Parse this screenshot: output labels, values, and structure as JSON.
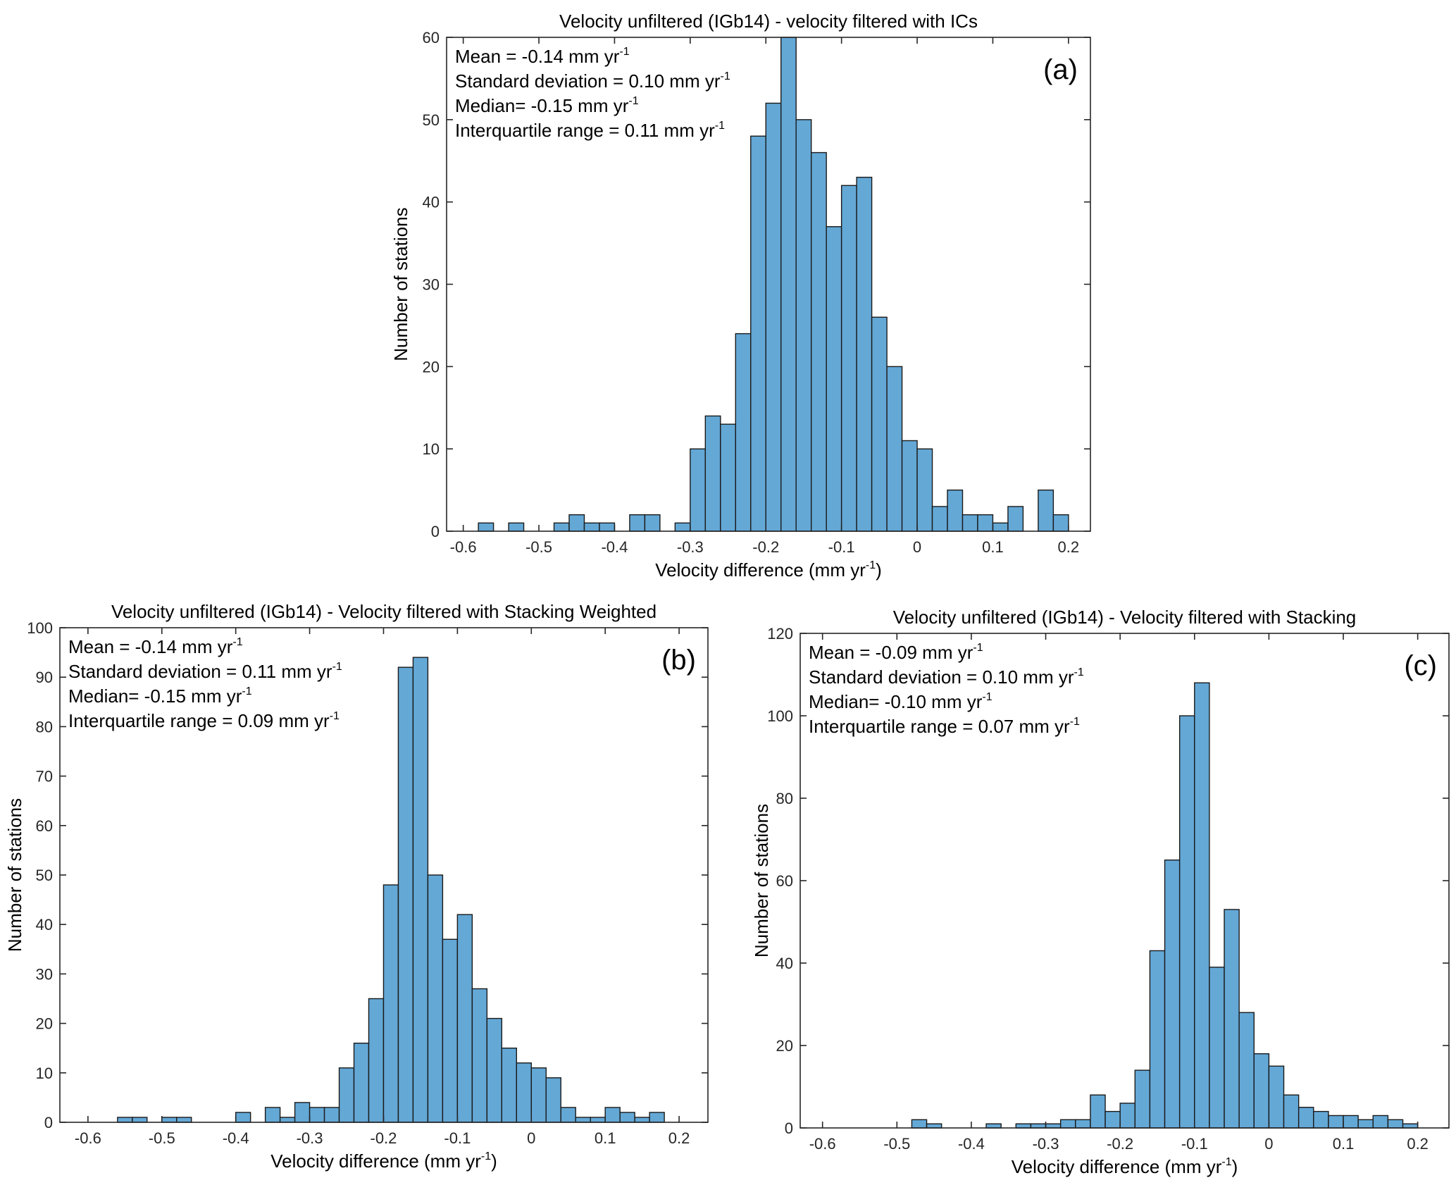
{
  "colors": {
    "bar_fill": "#64a8d6",
    "bar_edge": "#1a1a1a",
    "axis": "#262626"
  },
  "chart_data": [
    {
      "type": "bar",
      "panel": "(a)",
      "title": "Velocity unfiltered (IGb14) - velocity filtered with ICs",
      "xlabel": "Velocity difference (mm yr",
      "xlabel_sup": "-1",
      "xlabel_end": ")",
      "ylabel": "Number of stations",
      "xlim": [
        -0.622,
        0.229
      ],
      "ylim": [
        0,
        60
      ],
      "xticks": [
        -0.6,
        -0.5,
        -0.4,
        -0.3,
        -0.2,
        -0.1,
        0,
        0.1,
        0.2
      ],
      "xtick_labels": [
        "-0.6",
        "-0.5",
        "-0.4",
        "-0.3",
        "-0.2",
        "-0.1",
        "0",
        "0.1",
        "0.2"
      ],
      "yticks": [
        0,
        10,
        20,
        30,
        40,
        50,
        60
      ],
      "ytick_labels": [
        "0",
        "10",
        "20",
        "30",
        "40",
        "50",
        "60"
      ],
      "bin_width": 0.02,
      "bin_start": -0.58,
      "values": [
        1,
        0,
        1,
        0,
        0,
        1,
        2,
        1,
        1,
        0,
        2,
        2,
        0,
        1,
        10,
        14,
        13,
        24,
        48,
        52,
        60,
        50,
        46,
        37,
        42,
        43,
        26,
        20,
        11,
        10,
        3,
        5,
        2,
        2,
        1,
        3,
        0,
        5,
        2
      ],
      "stats": [
        {
          "label": "Mean = -0.14 mm yr",
          "sup": "-1"
        },
        {
          "label": "Standard deviation = 0.10 mm yr",
          "sup": "-1"
        },
        {
          "label": "Median= -0.15 mm yr",
          "sup": "-1"
        },
        {
          "label": "Interquartile range = 0.11 mm yr",
          "sup": "-1"
        }
      ]
    },
    {
      "type": "bar",
      "panel": "(b)",
      "title": "Velocity unfiltered (IGb14) - Velocity filtered with Stacking Weighted",
      "xlabel": "Velocity difference (mm yr",
      "xlabel_sup": "-1",
      "xlabel_end": ")",
      "ylabel": "Number of stations",
      "xlim": [
        -0.638,
        0.239
      ],
      "ylim": [
        0,
        100
      ],
      "xticks": [
        -0.6,
        -0.5,
        -0.4,
        -0.3,
        -0.2,
        -0.1,
        0,
        0.1,
        0.2
      ],
      "xtick_labels": [
        "-0.6",
        "-0.5",
        "-0.4",
        "-0.3",
        "-0.2",
        "-0.1",
        "0",
        "0.1",
        "0.2"
      ],
      "yticks": [
        0,
        10,
        20,
        30,
        40,
        50,
        60,
        70,
        80,
        90,
        100
      ],
      "ytick_labels": [
        "0",
        "10",
        "20",
        "30",
        "40",
        "50",
        "60",
        "70",
        "80",
        "90",
        "100"
      ],
      "bin_width": 0.02,
      "bin_start": -0.56,
      "values": [
        1,
        1,
        0,
        1,
        1,
        0,
        0,
        0,
        2,
        0,
        3,
        1,
        4,
        3,
        3,
        11,
        16,
        25,
        48,
        92,
        94,
        50,
        37,
        42,
        27,
        21,
        15,
        12,
        11,
        9,
        3,
        1,
        1,
        3,
        2,
        1,
        2
      ],
      "stats": [
        {
          "label": "Mean = -0.14 mm yr",
          "sup": "-1"
        },
        {
          "label": "Standard deviation = 0.11 mm yr",
          "sup": "-1"
        },
        {
          "label": "Median= -0.15 mm yr",
          "sup": "-1"
        },
        {
          "label": "Interquartile range = 0.09 mm yr",
          "sup": "-1"
        }
      ]
    },
    {
      "type": "bar",
      "panel": "(c)",
      "title": "Velocity unfiltered (IGb14) - Velocity filtered with Stacking",
      "xlabel": "Velocity difference (mm yr",
      "xlabel_sup": "-1",
      "xlabel_end": ")",
      "ylabel": "Number of stations",
      "xlim": [
        -0.63,
        0.242
      ],
      "ylim": [
        0,
        120
      ],
      "xticks": [
        -0.6,
        -0.5,
        -0.4,
        -0.3,
        -0.2,
        -0.1,
        0,
        0.1,
        0.2
      ],
      "xtick_labels": [
        "-0.6",
        "-0.5",
        "-0.4",
        "-0.3",
        "-0.2",
        "-0.1",
        "0",
        "0.1",
        "0.2"
      ],
      "yticks": [
        0,
        20,
        40,
        60,
        80,
        100,
        120
      ],
      "ytick_labels": [
        "0",
        "20",
        "40",
        "60",
        "80",
        "100",
        "120"
      ],
      "bin_width": 0.02,
      "bin_start": -0.48,
      "values": [
        2,
        1,
        0,
        0,
        0,
        1,
        0,
        1,
        1,
        1,
        2,
        2,
        8,
        4,
        6,
        14,
        43,
        65,
        100,
        108,
        39,
        53,
        28,
        18,
        15,
        8,
        5,
        4,
        3,
        3,
        2,
        3,
        2,
        1
      ],
      "stats": [
        {
          "label": "Mean = -0.09 mm yr",
          "sup": "-1"
        },
        {
          "label": "Standard deviation = 0.10 mm yr",
          "sup": "-1"
        },
        {
          "label": "Median= -0.10 mm yr",
          "sup": "-1"
        },
        {
          "label": "Interquartile range = 0.07 mm yr",
          "sup": "-1"
        }
      ]
    }
  ]
}
